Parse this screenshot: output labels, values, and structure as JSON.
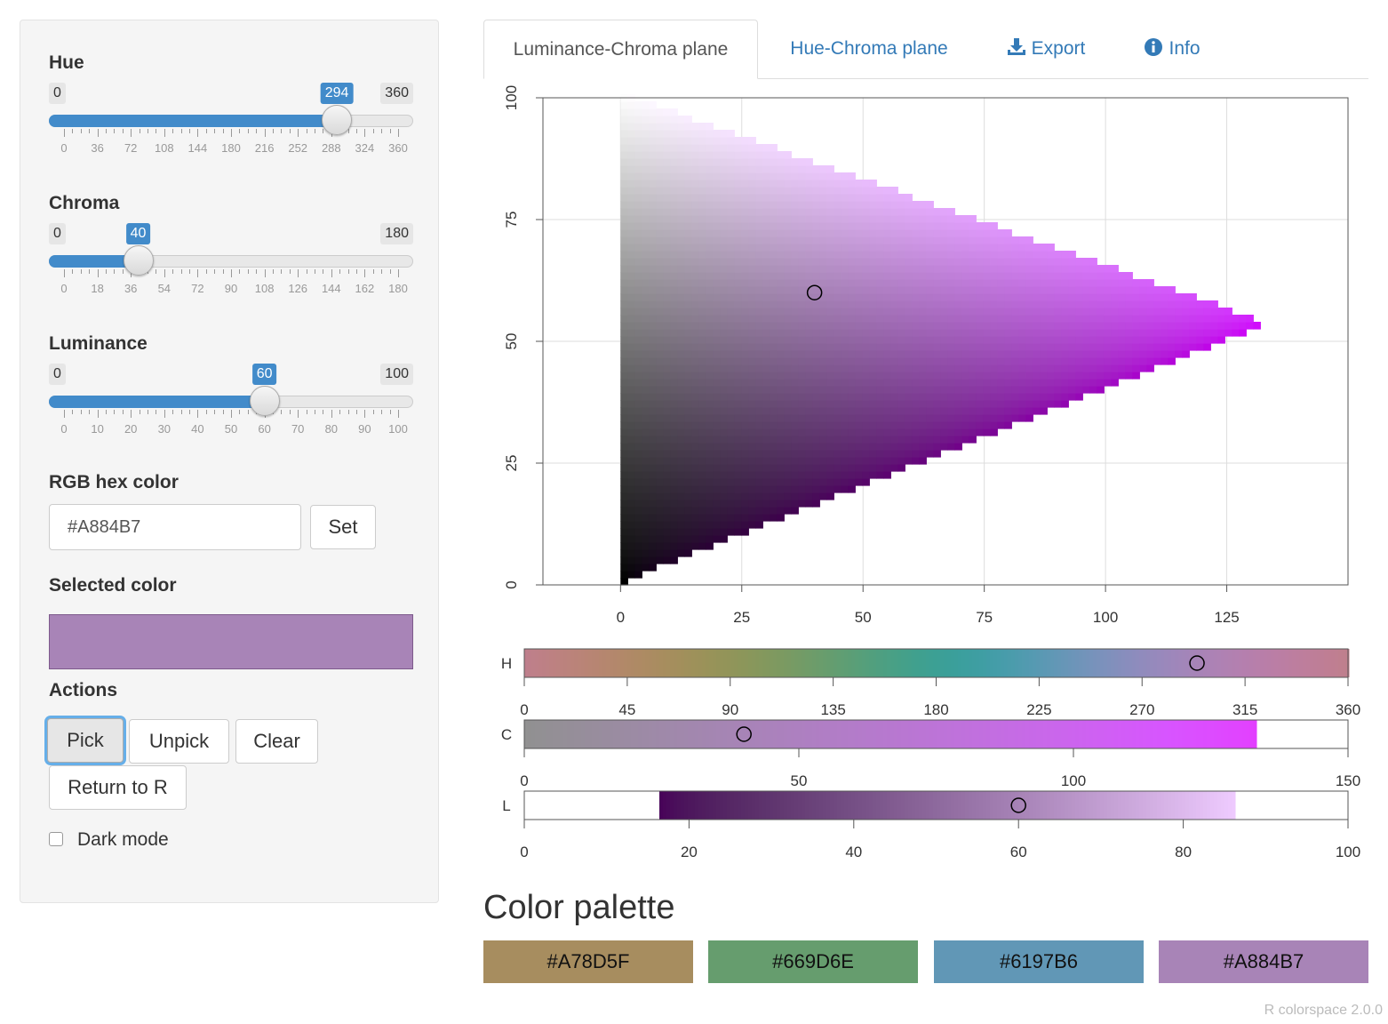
{
  "sliders": [
    {
      "label": "Hue",
      "min": 0,
      "max": 360,
      "value": 294,
      "min_label": "0",
      "max_label": "360",
      "value_label": "294",
      "ticks": [
        "0",
        "36",
        "72",
        "108",
        "144",
        "180",
        "216",
        "252",
        "288",
        "324",
        "360"
      ]
    },
    {
      "label": "Chroma",
      "min": 0,
      "max": 180,
      "value": 40,
      "min_label": "0",
      "max_label": "180",
      "value_label": "40",
      "ticks": [
        "0",
        "18",
        "36",
        "54",
        "72",
        "90",
        "108",
        "126",
        "144",
        "162",
        "180"
      ]
    },
    {
      "label": "Luminance",
      "min": 0,
      "max": 100,
      "value": 60,
      "min_label": "0",
      "max_label": "100",
      "value_label": "60",
      "ticks": [
        "0",
        "10",
        "20",
        "30",
        "40",
        "50",
        "60",
        "70",
        "80",
        "90",
        "100"
      ]
    }
  ],
  "hex": {
    "label": "RGB hex color",
    "value": "#A884B7",
    "set_label": "Set"
  },
  "selected": {
    "label": "Selected color",
    "color": "#A884B7"
  },
  "actions": {
    "label": "Actions",
    "pick": "Pick",
    "unpick": "Unpick",
    "clear": "Clear",
    "return": "Return to R"
  },
  "dark_mode": {
    "label": "Dark mode",
    "checked": false
  },
  "tabs": [
    {
      "label": "Luminance-Chroma plane",
      "active": true,
      "icon": ""
    },
    {
      "label": "Hue-Chroma plane",
      "active": false,
      "icon": ""
    },
    {
      "label": "Export",
      "active": false,
      "icon": "download-icon"
    },
    {
      "label": "Info",
      "active": false,
      "icon": "info-icon"
    }
  ],
  "chart_data": {
    "type": "scatter",
    "title": "",
    "x_ticks": [
      "0",
      "25",
      "50",
      "75",
      "100",
      "125"
    ],
    "y_ticks": [
      "0",
      "25",
      "50",
      "75",
      "100"
    ],
    "xlim": [
      -16,
      150
    ],
    "ylim": [
      0,
      100
    ],
    "gamut": {
      "hue": 294,
      "max_chroma": 133,
      "max_chroma_luminance": 53
    },
    "selected_point": {
      "chroma": 40,
      "luminance": 60
    }
  },
  "strips": [
    {
      "label": "H",
      "range": [
        0,
        360
      ],
      "ticks": [
        "0",
        "45",
        "90",
        "135",
        "180",
        "225",
        "270",
        "315",
        "360"
      ],
      "marker": 294
    },
    {
      "label": "C",
      "range": [
        0,
        150
      ],
      "ticks": [
        "0",
        "50",
        "100",
        "150"
      ],
      "marker": 40,
      "color_end": 133
    },
    {
      "label": "L",
      "range": [
        0,
        100
      ],
      "ticks": [
        "0",
        "20",
        "40",
        "60",
        "80",
        "100"
      ],
      "marker": 60,
      "color_start": 16,
      "color_end": 86
    }
  ],
  "palette": {
    "title": "Color palette",
    "colors": [
      "#A78D5F",
      "#669D6E",
      "#6197B6",
      "#A884B7"
    ]
  },
  "footer": {
    "version": "R colorspace 2.0.0"
  }
}
